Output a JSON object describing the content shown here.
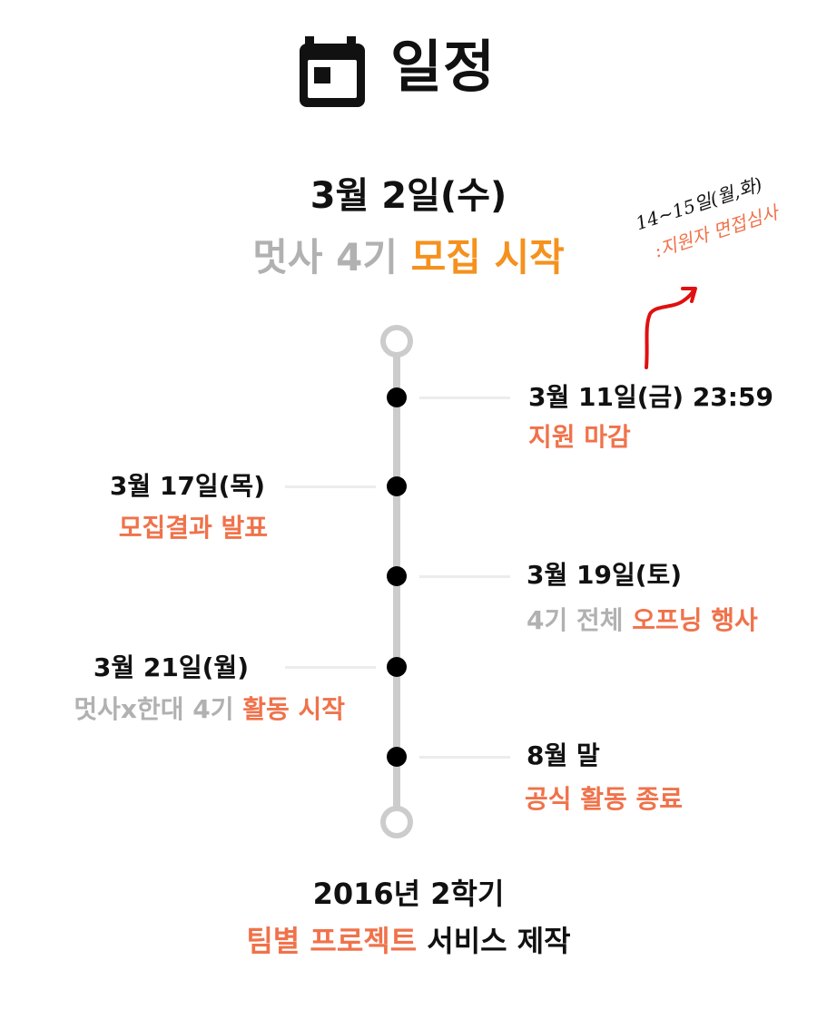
{
  "header": {
    "title": "일정",
    "icon": "calendar-icon"
  },
  "intro": {
    "date": "3월 2일(수)",
    "prefix": "멋사 4기",
    "highlight": "모집 시작"
  },
  "note": {
    "line1": "14~15일(월,화)",
    "line2": ":지원자 면접심사"
  },
  "events": [
    {
      "date": "3월 11일(금) 23:59",
      "desc_grey": "",
      "desc_highlight": "지원 마감"
    },
    {
      "date": "3월 17일(목)",
      "desc_grey": "",
      "desc_highlight": "모집결과 발표"
    },
    {
      "date": "3월 19일(토)",
      "desc_grey": "4기 전체",
      "desc_highlight": "오프닝 행사"
    },
    {
      "date": "3월 21일(월)",
      "desc_grey": "멋사x한대 4기",
      "desc_highlight": "활동 시작"
    },
    {
      "date": "8월 말",
      "desc_grey": "",
      "desc_highlight": "공식 활동 종료"
    }
  ],
  "final": {
    "date": "2016년 2학기",
    "highlight": "팀별 프로젝트",
    "suffix": "서비스 제작"
  },
  "colors": {
    "orange": "#f5911e",
    "coral": "#f0724a",
    "grey": "#b1b1b1",
    "axis": "#cccccc"
  }
}
